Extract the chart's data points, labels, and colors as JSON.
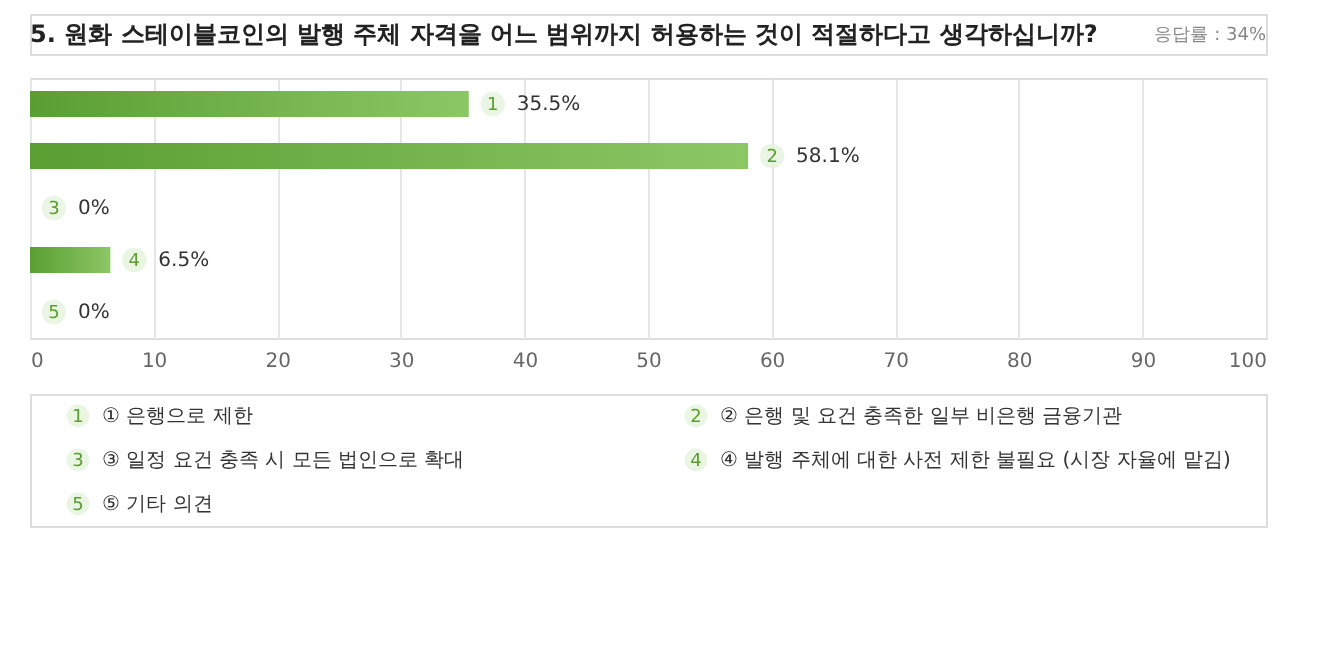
{
  "chart_data": {
    "type": "bar",
    "orientation": "horizontal",
    "title": "5. 원화 스테이블코인의 발행 주체 자격을 어느 범위까지 허용하는 것이 적절하다고 생각하십니까?",
    "subtitle": "응답률 : 34%",
    "categories": [
      "1",
      "2",
      "3",
      "4",
      "5"
    ],
    "values": [
      35.5,
      58.1,
      0,
      6.5,
      0
    ],
    "value_labels": [
      "35.5%",
      "58.1%",
      "0%",
      "6.5%",
      "0%"
    ],
    "color": "#5a9e32",
    "xlim": [
      0,
      100
    ],
    "xticks": [
      0,
      10,
      20,
      30,
      40,
      50,
      60,
      70,
      80,
      90,
      100
    ],
    "grid": "x",
    "tick_labels": "x",
    "annotations": [
      "① 은행으로 제한",
      "② 은행 및 요건 충족한 일부 비은행 금융기관",
      "③ 일정 요건 충족 시 모든 법인으로 확대",
      "④ 발행 주체에 대한 사전 제한 불필요 (시장 자율에 맡김)",
      "⑤ 기타 의견"
    ]
  }
}
